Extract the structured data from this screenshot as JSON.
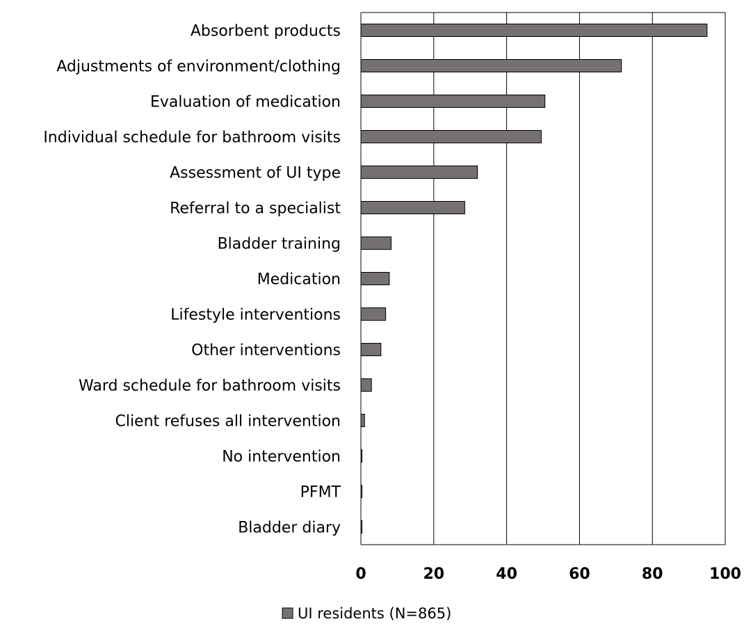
{
  "chart_data": {
    "type": "bar",
    "orientation": "horizontal",
    "categories": [
      "Absorbent products",
      "Adjustments of environment/clothing",
      "Evaluation of medication",
      "Individual schedule for bathroom visits",
      "Assessment of UI type",
      "Referral to a specialist",
      "Bladder training",
      "Medication",
      "Lifestyle interventions",
      "Other interventions",
      "Ward schedule for bathroom visits",
      "Client refuses all intervention",
      "No intervention",
      "PFMT",
      "Bladder diary"
    ],
    "series": [
      {
        "name": "UI residents (N=865)",
        "values": [
          95,
          71.5,
          50.5,
          49.5,
          32,
          28.5,
          8.3,
          7.8,
          6.8,
          5.5,
          2.9,
          1.0,
          0.3,
          0.3,
          0.3
        ],
        "color": "#767171"
      }
    ],
    "xlim": [
      0,
      100
    ],
    "xticks": [
      "0",
      "20",
      "40",
      "60",
      "80",
      "100"
    ],
    "grid": true,
    "legend": "bottom"
  }
}
